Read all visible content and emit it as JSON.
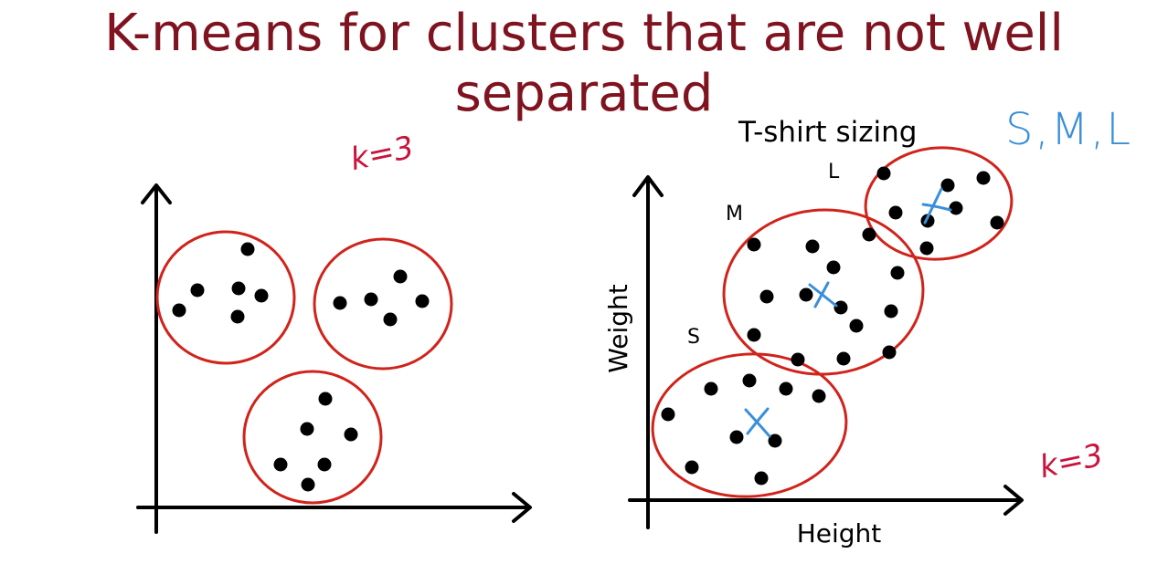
{
  "title": "K-means for clusters that are not well separated",
  "colors": {
    "title": "#7f1420",
    "cluster_outline": "#d0231b",
    "annotation_red": "#c8143c",
    "annotation_blue": "#3a8fd8",
    "axis": "#000000",
    "point": "#000000"
  },
  "left_panel": {
    "k_annotation": "k=3",
    "clusters": [
      {
        "name": "cluster-1",
        "points": [
          [
            196,
            340
          ],
          [
            216,
            318
          ],
          [
            261,
            316
          ],
          [
            286,
            324
          ],
          [
            260,
            347
          ],
          [
            271,
            273
          ]
        ]
      },
      {
        "name": "cluster-2",
        "points": [
          [
            372,
            332
          ],
          [
            406,
            328
          ],
          [
            427,
            350
          ],
          [
            438,
            303
          ],
          [
            462,
            330
          ]
        ]
      },
      {
        "name": "cluster-3",
        "points": [
          [
            356,
            437
          ],
          [
            336,
            470
          ],
          [
            384,
            476
          ],
          [
            355,
            509
          ],
          [
            307,
            509
          ],
          [
            337,
            531
          ]
        ]
      }
    ]
  },
  "right_panel": {
    "annotation_title": "T-shirt sizing",
    "sizes_annotation": "S,M,L",
    "k_annotation": "k=3",
    "x_label": "Height",
    "y_label": "Weight",
    "clusters": [
      {
        "label": "S",
        "points": [
          [
            731,
            454
          ],
          [
            778,
            426
          ],
          [
            820,
            417
          ],
          [
            860,
            426
          ],
          [
            896,
            434
          ],
          [
            806,
            479
          ],
          [
            848,
            483
          ],
          [
            757,
            512
          ],
          [
            833,
            524
          ]
        ]
      },
      {
        "label": "M",
        "points": [
          [
            825,
            268
          ],
          [
            889,
            270
          ],
          [
            912,
            293
          ],
          [
            951,
            257
          ],
          [
            982,
            299
          ],
          [
            839,
            325
          ],
          [
            882,
            323
          ],
          [
            920,
            337
          ],
          [
            937,
            357
          ],
          [
            975,
            341
          ],
          [
            825,
            367
          ],
          [
            873,
            394
          ],
          [
            923,
            393
          ],
          [
            973,
            386
          ]
        ]
      },
      {
        "label": "L",
        "points": [
          [
            967,
            190
          ],
          [
            1037,
            203
          ],
          [
            1076,
            195
          ],
          [
            980,
            233
          ],
          [
            1046,
            228
          ],
          [
            1015,
            242
          ],
          [
            1091,
            244
          ],
          [
            1014,
            272
          ]
        ]
      }
    ]
  }
}
